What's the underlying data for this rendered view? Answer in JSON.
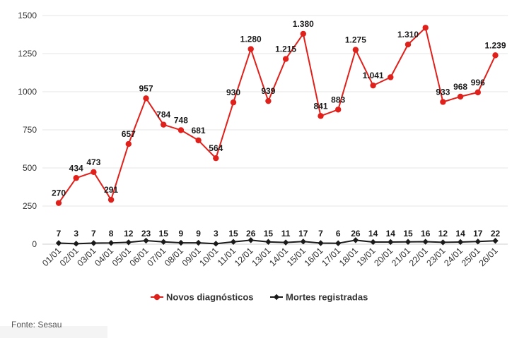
{
  "chart_data": {
    "type": "line",
    "categories": [
      "01/01",
      "02/01",
      "03/01",
      "04/01",
      "05/01",
      "06/01",
      "07/01",
      "08/01",
      "09/01",
      "10/01",
      "11/01",
      "12/01",
      "13/01",
      "14/01",
      "15/01",
      "16/01",
      "17/01",
      "18/01",
      "19/01",
      "20/01",
      "21/01",
      "22/01",
      "23/01",
      "24/01",
      "25/01",
      "26/01"
    ],
    "series": [
      {
        "name": "Novos diagnósticos",
        "color": "#e0201b",
        "values": [
          270,
          434,
          473,
          291,
          657,
          957,
          784,
          748,
          681,
          564,
          930,
          1280,
          939,
          1215,
          1380,
          841,
          883,
          1275,
          1041,
          1095,
          1310,
          1420,
          933,
          968,
          996,
          1239
        ],
        "labels": [
          "270",
          "434",
          "473",
          "291",
          "657",
          "957",
          "784",
          "748",
          "681",
          "564",
          "930",
          "1.280",
          "939",
          "1.215",
          "1.380",
          "841",
          "883",
          "1.275",
          "1.041",
          "",
          "1.310",
          "",
          "933",
          "968",
          "996",
          "1.239"
        ]
      },
      {
        "name": "Mortes registradas",
        "color": "#1a1a1a",
        "values": [
          7,
          3,
          7,
          8,
          12,
          23,
          15,
          9,
          9,
          3,
          15,
          26,
          15,
          11,
          17,
          7,
          6,
          26,
          14,
          14,
          15,
          16,
          12,
          14,
          17,
          22
        ],
        "labels": [
          "7",
          "3",
          "7",
          "8",
          "12",
          "23",
          "15",
          "9",
          "9",
          "3",
          "15",
          "26",
          "15",
          "11",
          "17",
          "7",
          "6",
          "26",
          "14",
          "14",
          "15",
          "16",
          "12",
          "14",
          "17",
          "22"
        ]
      }
    ],
    "ylim": [
      0,
      1500
    ],
    "yticks": [
      0,
      250,
      500,
      750,
      1000,
      1250,
      1500
    ],
    "ytick_labels": [
      "0",
      "250",
      "500",
      "750",
      "1000",
      "1250",
      "1500"
    ],
    "grid": true,
    "legend": "bottom-center",
    "title": "",
    "xlabel": "",
    "ylabel": ""
  },
  "source_text": "Fonte: Sesau"
}
